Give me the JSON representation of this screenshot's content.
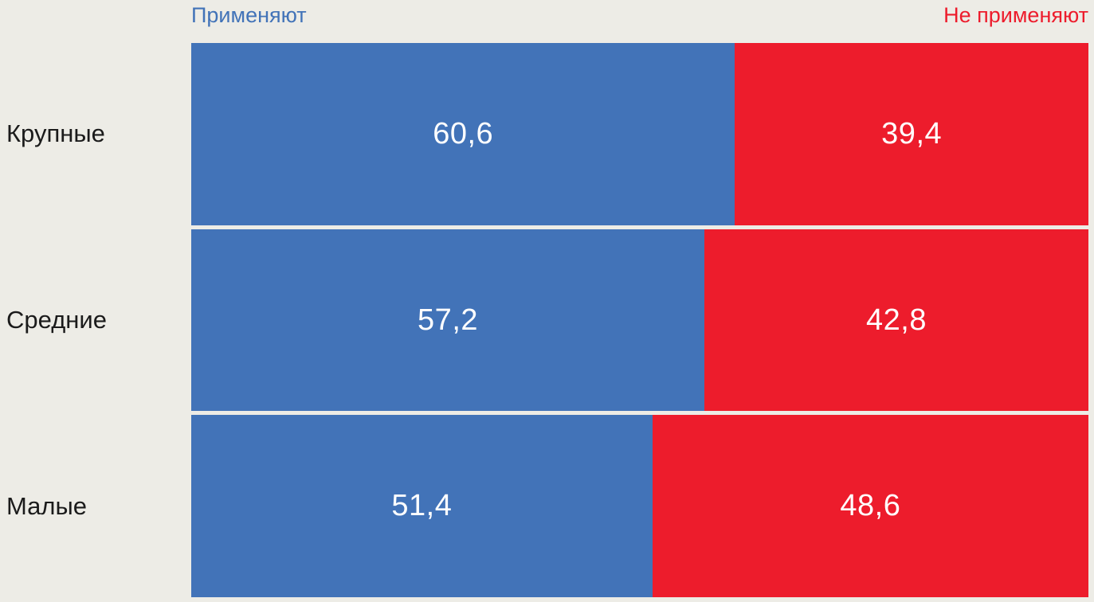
{
  "page": {
    "background_color": "#EDECE6",
    "category_text_color": "#1B1B1B",
    "value_text_color": "#FFFFFF"
  },
  "chart_data": {
    "type": "bar",
    "orientation": "horizontal",
    "stacked": true,
    "grid": false,
    "legend_position": "top",
    "xlim": [
      0,
      100
    ],
    "value_format": "percent with comma decimal separator",
    "categories": [
      "Крупные",
      "Средние",
      "Малые"
    ],
    "series": [
      {
        "name": "Применяют",
        "color": "#4273B8",
        "values": [
          60.6,
          57.2,
          51.4
        ],
        "labels": [
          "60,6",
          "57,2",
          "51,4"
        ]
      },
      {
        "name": "Не применяют",
        "color": "#ED1C2C",
        "values": [
          39.4,
          42.8,
          48.6
        ],
        "labels": [
          "39,4",
          "42,8",
          "48,6"
        ]
      }
    ]
  }
}
